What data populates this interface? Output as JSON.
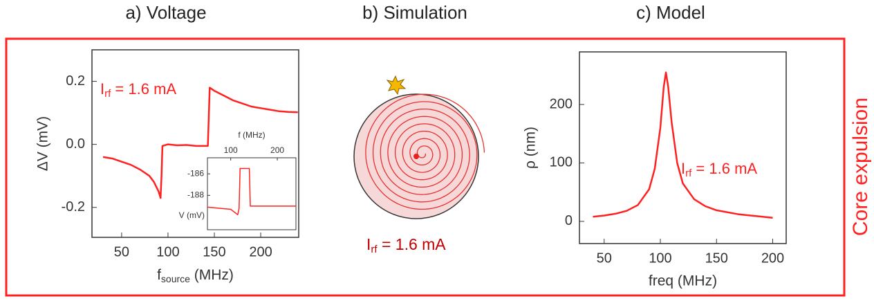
{
  "side_label": "Core expulsion",
  "chart_data": [
    {
      "type": "line",
      "title": "a)   Voltage",
      "x_label": {
        "main": "f",
        "sub": "source",
        "rest": " (MHz)"
      },
      "y_label": "ΔV (mV)",
      "annotation": {
        "main": "I",
        "sub": "rf",
        "rest": " = 1.6 mA"
      },
      "xlim": [
        18,
        241
      ],
      "xticks": [
        50,
        100,
        150,
        200
      ],
      "ylim": [
        -0.295,
        0.3
      ],
      "yticks": [
        -0.2,
        {
          "value": 0,
          "label": "0.0"
        },
        0.2
      ],
      "color": "#ff2020",
      "x": [
        30,
        40,
        50,
        60,
        70,
        80,
        85,
        90,
        92,
        93,
        94,
        100,
        110,
        120,
        130,
        143,
        145,
        150,
        160,
        170,
        180,
        190,
        200,
        210,
        220,
        230,
        240
      ],
      "values": [
        -0.04,
        -0.045,
        -0.055,
        -0.065,
        -0.08,
        -0.1,
        -0.12,
        -0.15,
        -0.17,
        -0.1,
        -0.005,
        0.0,
        -0.003,
        -0.002,
        -0.005,
        -0.005,
        0.18,
        0.17,
        0.155,
        0.14,
        0.13,
        0.12,
        0.115,
        0.11,
        0.105,
        0.103,
        0.102
      ]
    },
    {
      "type": "line",
      "x_label": "f (MHz)",
      "y_label": "V (mV)",
      "x_axis_position": "top",
      "xlim": [
        50,
        240
      ],
      "xticks": [
        100,
        200
      ],
      "ylim": [
        -191.2,
        -184.5
      ],
      "yticks": [
        -188,
        -186
      ],
      "color": "#ff2020",
      "x": [
        50,
        100,
        115,
        118,
        120,
        140,
        142,
        240
      ],
      "values": [
        -189.1,
        -189.3,
        -189.8,
        -189.2,
        -185.5,
        -185.5,
        -189,
        -189
      ]
    },
    {
      "type": "line",
      "title": "c)   Model",
      "x_label": "freq (MHz)",
      "y_label": "ρ (nm)",
      "annotation": {
        "main": "I",
        "sub": "rf",
        "rest": " = 1.6 mA"
      },
      "xlim": [
        28,
        212
      ],
      "xticks": [
        50,
        100,
        150,
        200
      ],
      "ylim": [
        -38,
        290
      ],
      "yticks": [
        0,
        100,
        200
      ],
      "color": "#ff2020",
      "x": [
        40,
        50,
        60,
        70,
        80,
        90,
        95,
        100,
        103,
        105,
        107,
        110,
        115,
        120,
        130,
        140,
        150,
        170,
        200
      ],
      "values": [
        8,
        10,
        13,
        18,
        28,
        55,
        90,
        160,
        230,
        255,
        230,
        170,
        100,
        65,
        38,
        26,
        19,
        12,
        6
      ]
    }
  ],
  "simulation": {
    "title": "b)   Simulation",
    "annotation": {
      "main": "I",
      "sub": "rf",
      "rest": " = 1.6 mA"
    }
  }
}
